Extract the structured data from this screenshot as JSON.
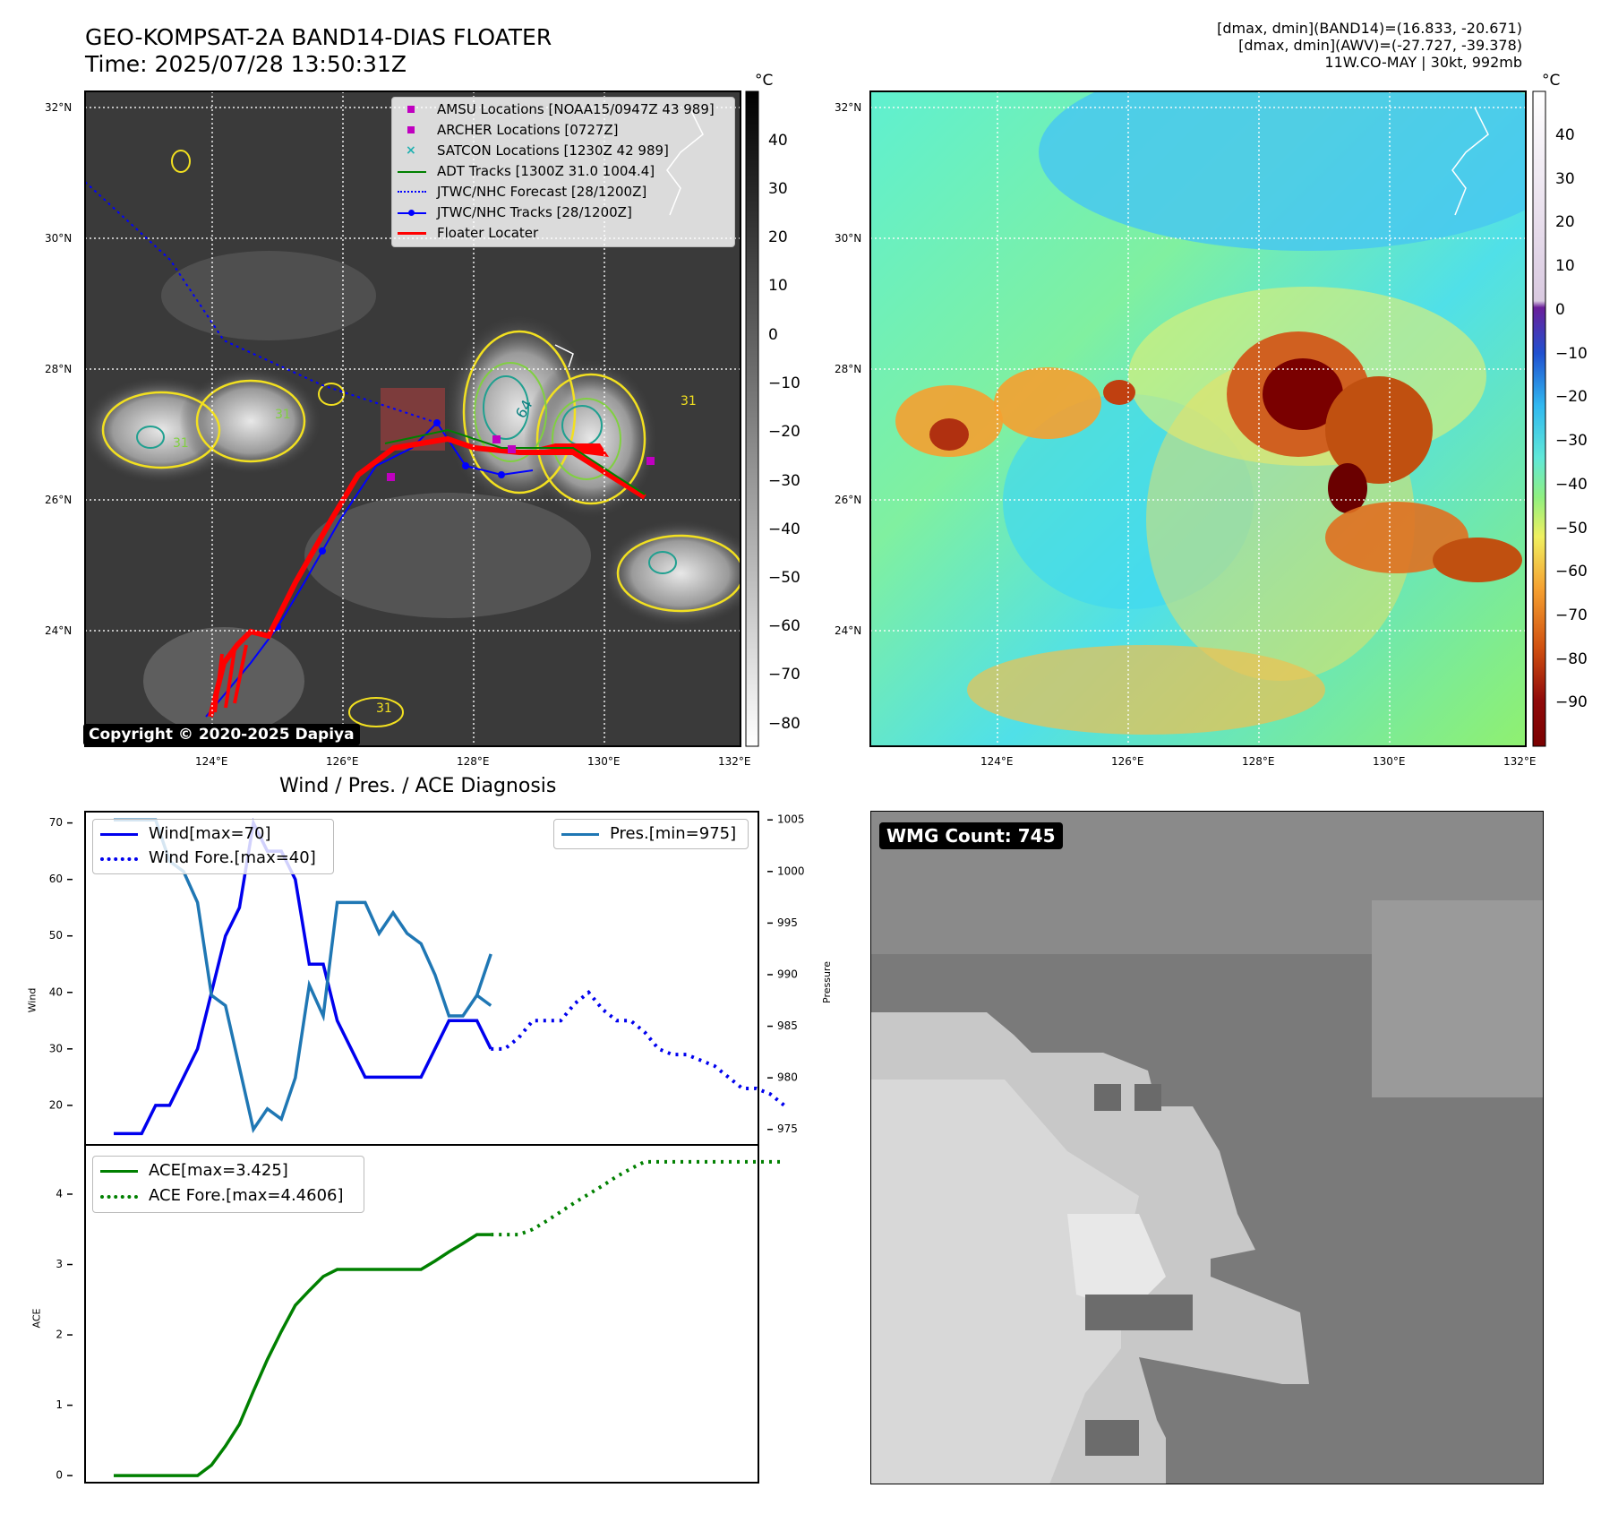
{
  "header": {
    "title_line1": "GEO-KOMPSAT-2A BAND14-DIAS FLOATER",
    "title_line2": "Time: 2025/07/28 13:50:31Z",
    "info_line1": "[dmax, dmin](BAND14)=(16.833, -20.671)",
    "info_line2": "[dmax, dmin](AWV)=(-27.727, -39.378)",
    "info_line3": "11W.CO-MAY | 30kt, 992mb"
  },
  "map_left": {
    "lat_labels": [
      "32°N",
      "30°N",
      "28°N",
      "26°N",
      "24°N"
    ],
    "lon_labels": [
      "124°E",
      "126°E",
      "128°E",
      "130°E",
      "132°E"
    ],
    "copyright": "Copyright © 2020-2025 Dapiya",
    "legend": [
      {
        "label": "AMSU Locations [NOAA15/0947Z 43 989]",
        "marker": "square",
        "color": "#c000c0"
      },
      {
        "label": "ARCHER Locations [0727Z]",
        "marker": "square",
        "color": "#c000c0"
      },
      {
        "label": "SATCON Locations [1230Z 42 989]",
        "marker": "x",
        "color": "#20b0b0"
      },
      {
        "label": "ADT Tracks [1300Z 31.0 1004.4]",
        "marker": "line",
        "color": "#008000"
      },
      {
        "label": "JTWC/NHC Forecast [28/1200Z]",
        "marker": "dotted",
        "color": "#0000ff"
      },
      {
        "label": "JTWC/NHC Tracks [28/1200Z]",
        "marker": "line-dot",
        "color": "#0000ff"
      },
      {
        "label": "Floater Locater",
        "marker": "line",
        "color": "#ff0000"
      }
    ],
    "colorbar": {
      "unit": "°C",
      "ticks": [
        "40",
        "30",
        "20",
        "10",
        "0",
        "−10",
        "−20",
        "−30",
        "−40",
        "−50",
        "−60",
        "−70",
        "−80"
      ]
    },
    "contour_labels": [
      "64",
      "31",
      "31",
      "31",
      "31"
    ]
  },
  "map_right": {
    "lat_labels": [
      "32°N",
      "30°N",
      "28°N",
      "26°N",
      "24°N"
    ],
    "lon_labels": [
      "124°E",
      "126°E",
      "128°E",
      "130°E",
      "132°E"
    ],
    "colorbar": {
      "unit": "°C",
      "ticks": [
        "40",
        "30",
        "20",
        "10",
        "0",
        "−10",
        "−20",
        "−30",
        "−40",
        "−50",
        "−60",
        "−70",
        "−80",
        "−90"
      ]
    }
  },
  "wmg": {
    "label": "WMG Count: 745"
  },
  "chart_data": [
    {
      "type": "line",
      "title": "Wind / Pres. / ACE Diagnosis",
      "ylabel": "Wind",
      "ylabel_right": "Pressure",
      "ylim": [
        13,
        72
      ],
      "ylim_right": [
        973.5,
        1005.8
      ],
      "yticks": [
        "70",
        "60",
        "50",
        "40",
        "30",
        "20"
      ],
      "yticks_right": [
        "1005",
        "1000",
        "995",
        "990",
        "985",
        "980",
        "975"
      ],
      "series": [
        {
          "name": "Wind[max=70]",
          "axis": "left",
          "style": "solid",
          "color": "#0000ee",
          "x": [
            0,
            1,
            2,
            3,
            4,
            5,
            6,
            7,
            8,
            9,
            10,
            11,
            12,
            13,
            14,
            15,
            16,
            17,
            18,
            19,
            20,
            21,
            22,
            23,
            24,
            25,
            26,
            27
          ],
          "values": [
            15,
            15,
            15,
            20,
            20,
            25,
            30,
            40,
            50,
            55,
            70,
            65,
            65,
            60,
            45,
            45,
            35,
            30,
            25,
            25,
            25,
            25,
            25,
            30,
            35,
            35,
            35,
            30
          ]
        },
        {
          "name": "Wind Fore.[max=40]",
          "axis": "left",
          "style": "dotted",
          "color": "#0000ee",
          "x": [
            27,
            28,
            29,
            30,
            31,
            32,
            33,
            34,
            35,
            36,
            37,
            38,
            39,
            40,
            41,
            42,
            43,
            44,
            45,
            46,
            47,
            48
          ],
          "values": [
            30,
            30,
            32,
            35,
            35,
            35,
            38,
            40,
            37,
            35,
            35,
            33,
            30,
            29,
            29,
            28,
            27,
            25,
            23,
            23,
            22,
            20
          ]
        },
        {
          "name": "Pres.[min=975]",
          "axis": "right",
          "style": "solid",
          "color": "#1f77b4",
          "x": [
            0,
            1,
            2,
            3,
            4,
            5,
            6,
            7,
            8,
            9,
            10,
            11,
            12,
            13,
            14,
            15,
            16,
            17,
            18,
            19,
            20,
            21,
            22,
            23,
            24,
            25,
            26,
            27
          ],
          "values": [
            1005,
            1005,
            1005,
            1005,
            1001,
            1000,
            997,
            988,
            987,
            981,
            975,
            977,
            976,
            980,
            989,
            986,
            997,
            997,
            997,
            994,
            996,
            994,
            993,
            990,
            986,
            986,
            988,
            987
          ]
        },
        {
          "name": "",
          "axis": "right",
          "style": "solid",
          "color": "#1f77b4",
          "x": [
            26,
            27
          ],
          "values": [
            988,
            992
          ]
        }
      ]
    },
    {
      "type": "line",
      "ylabel": "ACE",
      "ylim": [
        -0.1,
        4.7
      ],
      "yticks": [
        "4",
        "3",
        "2",
        "1",
        "0"
      ],
      "series": [
        {
          "name": "ACE[max=3.425]",
          "style": "solid",
          "color": "#008000",
          "x": [
            0,
            1,
            2,
            3,
            4,
            5,
            6,
            7,
            8,
            9,
            10,
            11,
            12,
            13,
            14,
            15,
            16,
            17,
            18,
            19,
            20,
            21,
            22,
            23,
            24,
            25,
            26,
            27
          ],
          "values": [
            0,
            0,
            0,
            0,
            0,
            0,
            0,
            0.15,
            0.42,
            0.73,
            1.2,
            1.65,
            2.05,
            2.42,
            2.63,
            2.83,
            2.93,
            2.93,
            2.93,
            2.93,
            2.93,
            2.93,
            2.93,
            3.05,
            3.18,
            3.3,
            3.425,
            3.425
          ]
        },
        {
          "name": "ACE Fore.[max=4.4606]",
          "style": "dotted",
          "color": "#008000",
          "x": [
            27,
            28,
            29,
            30,
            31,
            32,
            33,
            34,
            35,
            36,
            37,
            38,
            39,
            40,
            41,
            42,
            43,
            44,
            45,
            46,
            47,
            48
          ],
          "values": [
            3.425,
            3.425,
            3.425,
            3.5,
            3.62,
            3.75,
            3.88,
            4.0,
            4.12,
            4.25,
            4.36,
            4.46,
            4.46,
            4.46,
            4.46,
            4.46,
            4.46,
            4.46,
            4.46,
            4.46,
            4.46,
            4.46
          ]
        }
      ]
    }
  ]
}
